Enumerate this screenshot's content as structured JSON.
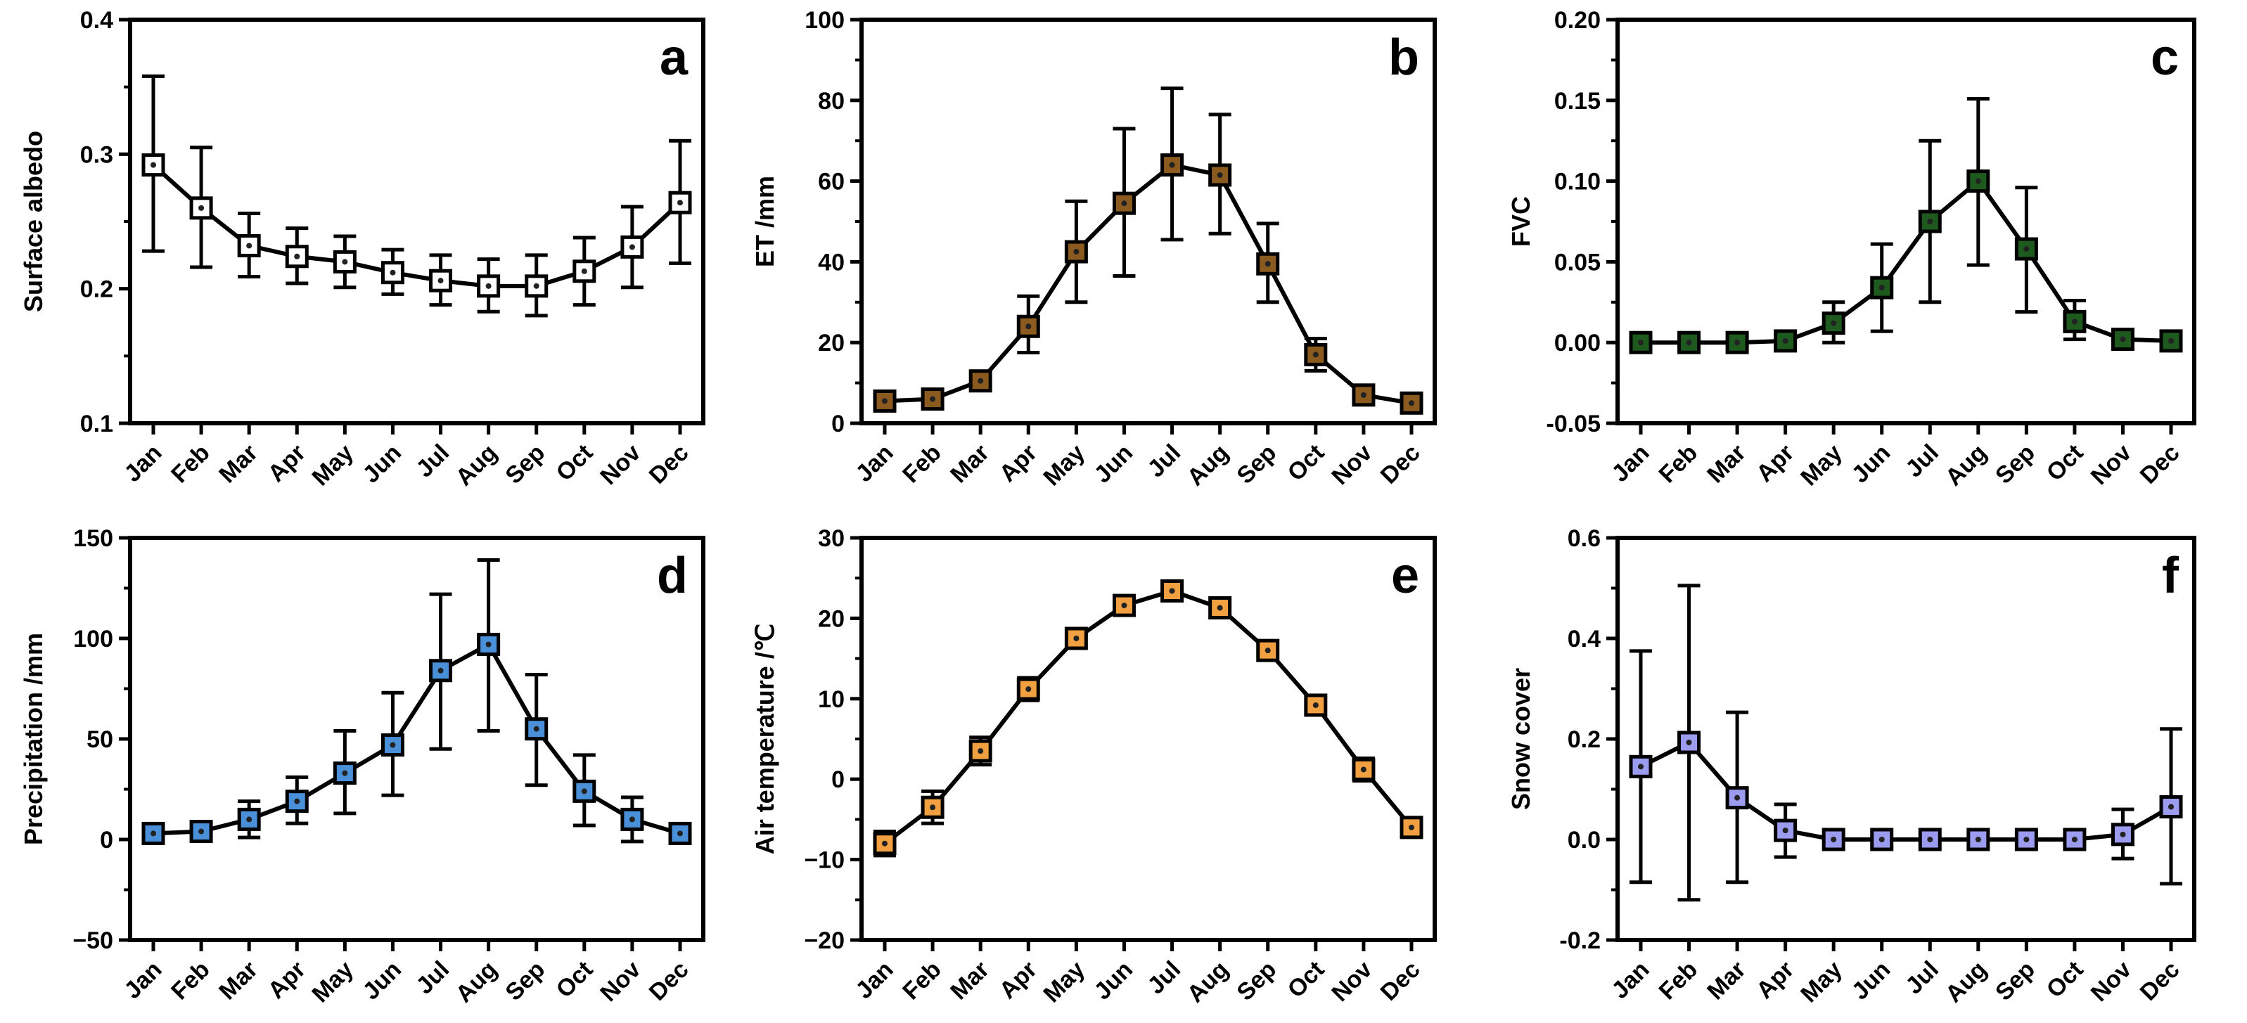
{
  "chart_data": [
    {
      "type": "line",
      "panel": "a",
      "ylabel": "Surface albedo",
      "ylim": [
        0.1,
        0.4
      ],
      "yticks": [
        "0.1",
        "0.2",
        "0.3",
        "0.4"
      ],
      "yminor": [
        0.15,
        0.25,
        0.35
      ],
      "categories": [
        "Jan",
        "Feb",
        "Mar",
        "Apr",
        "May",
        "Jun",
        "Jul",
        "Aug",
        "Sep",
        "Oct",
        "Nov",
        "Dec"
      ],
      "values": [
        0.292,
        0.26,
        0.232,
        0.224,
        0.22,
        0.212,
        0.206,
        0.202,
        0.202,
        0.213,
        0.231,
        0.264
      ],
      "err_low": [
        0.228,
        0.216,
        0.209,
        0.204,
        0.201,
        0.196,
        0.188,
        0.183,
        0.18,
        0.188,
        0.201,
        0.219
      ],
      "err_high": [
        0.358,
        0.305,
        0.256,
        0.245,
        0.239,
        0.229,
        0.225,
        0.222,
        0.225,
        0.238,
        0.261,
        0.31
      ],
      "marker_color": "#ffffff",
      "grid": false
    },
    {
      "type": "line",
      "panel": "b",
      "ylabel": "ET /mm",
      "ylim": [
        0,
        100
      ],
      "yticks": [
        "0",
        "20",
        "40",
        "60",
        "80",
        "100"
      ],
      "yminor": [
        10,
        30,
        50,
        70,
        90
      ],
      "categories": [
        "Jan",
        "Feb",
        "Mar",
        "Apr",
        "May",
        "Jun",
        "Jul",
        "Aug",
        "Sep",
        "Oct",
        "Nov",
        "Dec"
      ],
      "values": [
        5.5,
        6.0,
        10.5,
        24.0,
        42.5,
        54.5,
        64.0,
        61.5,
        39.5,
        17.0,
        7.0,
        5.0
      ],
      "err_low": [
        4.5,
        5.0,
        8.5,
        17.5,
        30.0,
        36.5,
        45.5,
        47.0,
        30.0,
        13.0,
        6.0,
        4.0
      ],
      "err_high": [
        6.5,
        7.0,
        12.5,
        31.5,
        55.0,
        73.0,
        83.0,
        76.5,
        49.5,
        21.0,
        8.0,
        6.0
      ],
      "marker_color": "#8b5a1f",
      "grid": false
    },
    {
      "type": "line",
      "panel": "c",
      "ylabel": "FVC",
      "ylim": [
        -0.05,
        0.2
      ],
      "yticks": [
        "-0.05",
        "0.00",
        "0.05",
        "0.10",
        "0.15",
        "0.20"
      ],
      "yminor": [
        -0.025,
        0.025,
        0.075,
        0.125,
        0.175
      ],
      "categories": [
        "Jan",
        "Feb",
        "Mar",
        "Apr",
        "May",
        "Jun",
        "Jul",
        "Aug",
        "Sep",
        "Oct",
        "Nov",
        "Dec"
      ],
      "values": [
        0.0,
        0.0,
        0.0,
        0.001,
        0.012,
        0.034,
        0.075,
        0.1,
        0.058,
        0.013,
        0.002,
        0.001
      ],
      "err_low": [
        0.0,
        0.0,
        0.0,
        0.0,
        0.0,
        0.007,
        0.025,
        0.048,
        0.019,
        0.002,
        0.001,
        0.0
      ],
      "err_high": [
        0.0,
        0.0,
        0.0,
        0.002,
        0.025,
        0.061,
        0.125,
        0.151,
        0.096,
        0.026,
        0.003,
        0.002
      ],
      "marker_color": "#1e5a1e",
      "grid": false
    },
    {
      "type": "line",
      "panel": "d",
      "ylabel": "Precipitation /mm",
      "ylim": [
        -50,
        150
      ],
      "yticks": [
        "−50",
        "0",
        "50",
        "100",
        "150"
      ],
      "yminor": [
        -25,
        25,
        75,
        125
      ],
      "categories": [
        "Jan",
        "Feb",
        "Mar",
        "Apr",
        "May",
        "Jun",
        "Jul",
        "Aug",
        "Sep",
        "Oct",
        "Nov",
        "Dec"
      ],
      "values": [
        3,
        4,
        10,
        19,
        33,
        47,
        84,
        97,
        55,
        24,
        10,
        3
      ],
      "err_low": [
        2,
        3,
        1,
        8,
        13,
        22,
        45,
        54,
        27,
        7,
        -1,
        2
      ],
      "err_high": [
        4,
        5,
        19,
        31,
        54,
        73,
        122,
        139,
        82,
        42,
        21,
        4
      ],
      "marker_color": "#4a90d9",
      "grid": false
    },
    {
      "type": "line",
      "panel": "e",
      "ylabel": "Air temperature /℃",
      "ylim": [
        -20,
        30
      ],
      "yticks": [
        "−20",
        "−10",
        "0",
        "10",
        "20",
        "30"
      ],
      "yminor": [
        -15,
        -5,
        5,
        15,
        25
      ],
      "categories": [
        "Jan",
        "Feb",
        "Mar",
        "Apr",
        "May",
        "Jun",
        "Jul",
        "Aug",
        "Sep",
        "Oct",
        "Nov",
        "Dec"
      ],
      "values": [
        -8.0,
        -3.5,
        3.5,
        11.2,
        17.5,
        21.6,
        23.4,
        21.3,
        16.0,
        9.2,
        1.2,
        -6.0
      ],
      "err_low": [
        -9.5,
        -5.5,
        1.8,
        9.8,
        16.6,
        20.8,
        22.6,
        20.4,
        15.0,
        8.3,
        -0.2,
        -7.2
      ],
      "err_high": [
        -6.5,
        -1.5,
        5.2,
        12.6,
        18.4,
        22.4,
        24.2,
        22.2,
        17.0,
        10.1,
        2.6,
        -4.8
      ],
      "marker_color": "#f0a040",
      "grid": false
    },
    {
      "type": "line",
      "panel": "f",
      "ylabel": "Snow cover",
      "ylim": [
        -0.2,
        0.6
      ],
      "yticks": [
        "-0.2",
        "0.0",
        "0.2",
        "0.4",
        "0.6"
      ],
      "yminor": [
        -0.1,
        0.1,
        0.3,
        0.5
      ],
      "categories": [
        "Jan",
        "Feb",
        "Mar",
        "Apr",
        "May",
        "Jun",
        "Jul",
        "Aug",
        "Sep",
        "Oct",
        "Nov",
        "Dec"
      ],
      "values": [
        0.145,
        0.193,
        0.083,
        0.018,
        0.0,
        0.0,
        0.0,
        0.0,
        0.0,
        0.0,
        0.01,
        0.065
      ],
      "err_low": [
        -0.085,
        -0.12,
        -0.085,
        -0.035,
        0.0,
        0.0,
        0.0,
        0.0,
        0.0,
        0.0,
        -0.038,
        -0.088
      ],
      "err_high": [
        0.375,
        0.505,
        0.253,
        0.07,
        0.0,
        0.0,
        0.0,
        0.0,
        0.0,
        0.0,
        0.06,
        0.22
      ],
      "marker_color": "#9b9bef",
      "grid": false
    }
  ]
}
